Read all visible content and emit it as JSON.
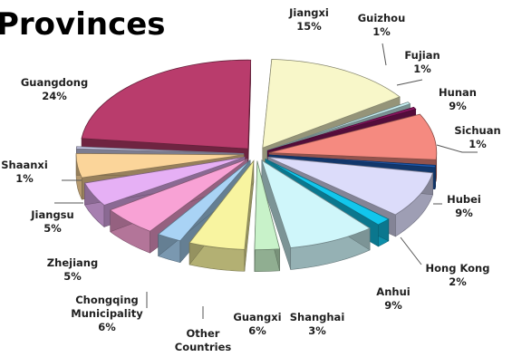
{
  "chart_data": {
    "type": "pie",
    "title": "Provinces",
    "exploded": true,
    "three_d": true,
    "slices": [
      {
        "label": "Jiangxi",
        "lines": [
          "Jiangxi"
        ],
        "value": 15,
        "value_label": "15%",
        "color": "#f8f7c9"
      },
      {
        "label": "Guizhou",
        "lines": [
          "Guizhou"
        ],
        "value": 1,
        "value_label": "1%",
        "color": "#c9f1f4"
      },
      {
        "label": "Fujian",
        "lines": [
          "Fujian"
        ],
        "value": 1,
        "value_label": "1%",
        "color": "#8c1563"
      },
      {
        "label": "Hunan",
        "lines": [
          "Hunan"
        ],
        "value": 9,
        "value_label": "9%",
        "color": "#f58a80"
      },
      {
        "label": "Sichuan",
        "lines": [
          "Sichuan"
        ],
        "value": 1,
        "value_label": "1%",
        "color": "#1e5bb3"
      },
      {
        "label": "Hubei",
        "lines": [
          "Hubei"
        ],
        "value": 9,
        "value_label": "9%",
        "color": "#dcdcfa"
      },
      {
        "label": "Hong Kong",
        "lines": [
          "Hong Kong"
        ],
        "value": 2,
        "value_label": "2%",
        "color": "#12c6ec"
      },
      {
        "label": "Anhui",
        "lines": [
          "Anhui"
        ],
        "value": 9,
        "value_label": "9%",
        "color": "#cff6fa"
      },
      {
        "label": "Shanghai",
        "lines": [
          "Shanghai"
        ],
        "value": 3,
        "value_label": "3%",
        "color": "#c8f2c9"
      },
      {
        "label": "Guangxi",
        "lines": [
          "Guangxi"
        ],
        "value": 6,
        "value_label": "6%",
        "color": "#f8f4a0"
      },
      {
        "label": "Other Countries",
        "lines": [
          "Other",
          "Countries"
        ],
        "value": 3,
        "value_label": "",
        "color": "#a9d3f5"
      },
      {
        "label": "Chongqing Municipality",
        "lines": [
          "Chongqing",
          "Municipality"
        ],
        "value": 6,
        "value_label": "6%",
        "color": "#f8a2d5"
      },
      {
        "label": "Zhejiang",
        "lines": [
          "Zhejiang"
        ],
        "value": 5,
        "value_label": "5%",
        "color": "#e6b0f5"
      },
      {
        "label": "Jiangsu",
        "lines": [
          "Jiangsu"
        ],
        "value": 5,
        "value_label": "5%",
        "color": "#fbd59a"
      },
      {
        "label": "Shaanxi",
        "lines": [
          "Shaanxi"
        ],
        "value": 1,
        "value_label": "1%",
        "color": "#cfd0f0"
      },
      {
        "label": "Guangdong",
        "lines": [
          "Guangdong"
        ],
        "value": 24,
        "value_label": "24%",
        "color": "#b93c6c"
      }
    ]
  }
}
